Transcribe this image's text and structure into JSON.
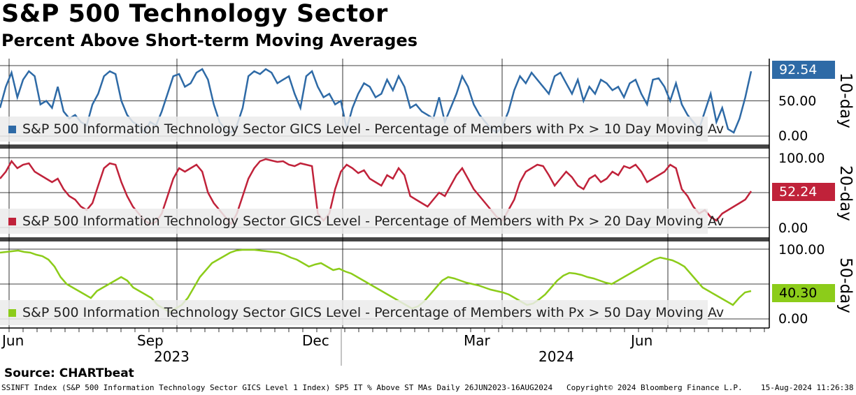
{
  "title": "S&P 500 Technology Sector",
  "subtitle": "Percent Above Short-term Moving Averages",
  "source": "Source: CHARTbeat",
  "footer": {
    "index": "SSINFT Index (S&P 500 Information Technology Sector GICS Level 1 Index) SP5 IT % Above ST MAs  Daily 26JUN2023-16AUG2024",
    "copyright": "Copyright© 2024 Bloomberg Finance L.P.",
    "timestamp": "15-Aug-2024 11:26:38"
  },
  "colors": {
    "ten_day": "#2e6aa6",
    "twenty_day": "#c0223a",
    "fifty_day": "#8ccc1a"
  },
  "chart_data": {
    "type": "line",
    "x_ticks": [
      "Jun",
      "Sep",
      "Dec",
      "Mar",
      "Jun"
    ],
    "years": [
      "2023",
      "2024"
    ],
    "panels": [
      {
        "name": "10-day",
        "legend": "S&P 500 Information Technology Sector GICS Level - Percentage of Members with Px > 10 Day Moving Av",
        "last_value_label": "92.54",
        "y_ticks": [
          "50.00",
          "0.00"
        ],
        "ylim": [
          0,
          100
        ],
        "values": [
          40,
          70,
          90,
          55,
          80,
          92,
          85,
          45,
          50,
          40,
          70,
          35,
          25,
          30,
          20,
          15,
          45,
          60,
          85,
          92,
          88,
          50,
          30,
          20,
          15,
          5,
          20,
          15,
          35,
          60,
          85,
          88,
          70,
          75,
          90,
          95,
          80,
          45,
          20,
          10,
          5,
          15,
          40,
          85,
          92,
          88,
          95,
          90,
          75,
          80,
          85,
          60,
          40,
          85,
          92,
          70,
          55,
          60,
          45,
          50,
          10,
          40,
          60,
          75,
          70,
          55,
          60,
          80,
          65,
          85,
          70,
          40,
          45,
          35,
          30,
          25,
          55,
          20,
          40,
          60,
          85,
          70,
          45,
          30,
          20,
          10,
          5,
          15,
          35,
          65,
          85,
          75,
          90,
          80,
          70,
          60,
          85,
          90,
          75,
          60,
          80,
          50,
          70,
          60,
          80,
          75,
          65,
          70,
          55,
          75,
          80,
          60,
          45,
          80,
          82,
          70,
          50,
          75,
          45,
          30,
          20,
          10,
          35,
          60,
          20,
          40,
          10,
          5,
          25,
          55,
          92
        ],
        "color": "#2e6aa6"
      },
      {
        "name": "20-day",
        "legend": "S&P 500 Information Technology Sector GICS Level - Percentage of Members with Px > 20 Day Moving Av",
        "last_value_label": "52.24",
        "y_ticks": [
          "100.00",
          "0.00"
        ],
        "ylim": [
          0,
          100
        ],
        "values": [
          70,
          80,
          95,
          85,
          90,
          92,
          80,
          75,
          70,
          65,
          70,
          55,
          45,
          40,
          30,
          25,
          35,
          60,
          85,
          92,
          90,
          65,
          45,
          30,
          20,
          10,
          5,
          8,
          20,
          45,
          70,
          85,
          80,
          85,
          90,
          80,
          50,
          35,
          25,
          15,
          5,
          20,
          45,
          70,
          85,
          95,
          98,
          96,
          94,
          95,
          90,
          88,
          92,
          90,
          88,
          20,
          10,
          20,
          55,
          80,
          90,
          85,
          78,
          82,
          70,
          65,
          60,
          75,
          70,
          85,
          75,
          45,
          40,
          35,
          30,
          40,
          50,
          45,
          60,
          75,
          85,
          70,
          55,
          45,
          35,
          25,
          15,
          10,
          25,
          40,
          65,
          80,
          85,
          90,
          88,
          75,
          60,
          70,
          80,
          72,
          60,
          55,
          70,
          75,
          65,
          70,
          80,
          75,
          88,
          85,
          90,
          80,
          65,
          70,
          75,
          80,
          90,
          85,
          55,
          45,
          30,
          20,
          25,
          15,
          10,
          20,
          25,
          30,
          35,
          40,
          52
        ],
        "color": "#c0223a"
      },
      {
        "name": "50-day",
        "legend": "S&P 500 Information Technology Sector GICS Level - Percentage of Members with Px > 50 Day Moving Av",
        "last_value_label": "40.30",
        "y_ticks": [
          "100.00",
          "50.00",
          "0.00"
        ],
        "ylim": [
          0,
          100
        ],
        "values": [
          95,
          96,
          97,
          98,
          96,
          95,
          92,
          90,
          85,
          75,
          60,
          50,
          45,
          40,
          35,
          30,
          40,
          45,
          50,
          55,
          60,
          55,
          45,
          40,
          35,
          30,
          20,
          15,
          10,
          15,
          20,
          30,
          45,
          60,
          70,
          80,
          85,
          90,
          95,
          98,
          99,
          99,
          99,
          98,
          97,
          96,
          95,
          92,
          88,
          85,
          80,
          75,
          78,
          80,
          75,
          70,
          72,
          68,
          65,
          60,
          55,
          50,
          45,
          40,
          35,
          30,
          25,
          20,
          15,
          18,
          25,
          35,
          45,
          55,
          60,
          58,
          55,
          52,
          50,
          48,
          45,
          42,
          40,
          38,
          35,
          30,
          25,
          20,
          22,
          28,
          35,
          45,
          55,
          62,
          66,
          65,
          63,
          60,
          58,
          55,
          52,
          50,
          55,
          60,
          65,
          70,
          75,
          80,
          85,
          88,
          86,
          84,
          80,
          75,
          65,
          55,
          45,
          40,
          35,
          30,
          25,
          20,
          30,
          38,
          40
        ],
        "color": "#8ccc1a"
      }
    ]
  }
}
